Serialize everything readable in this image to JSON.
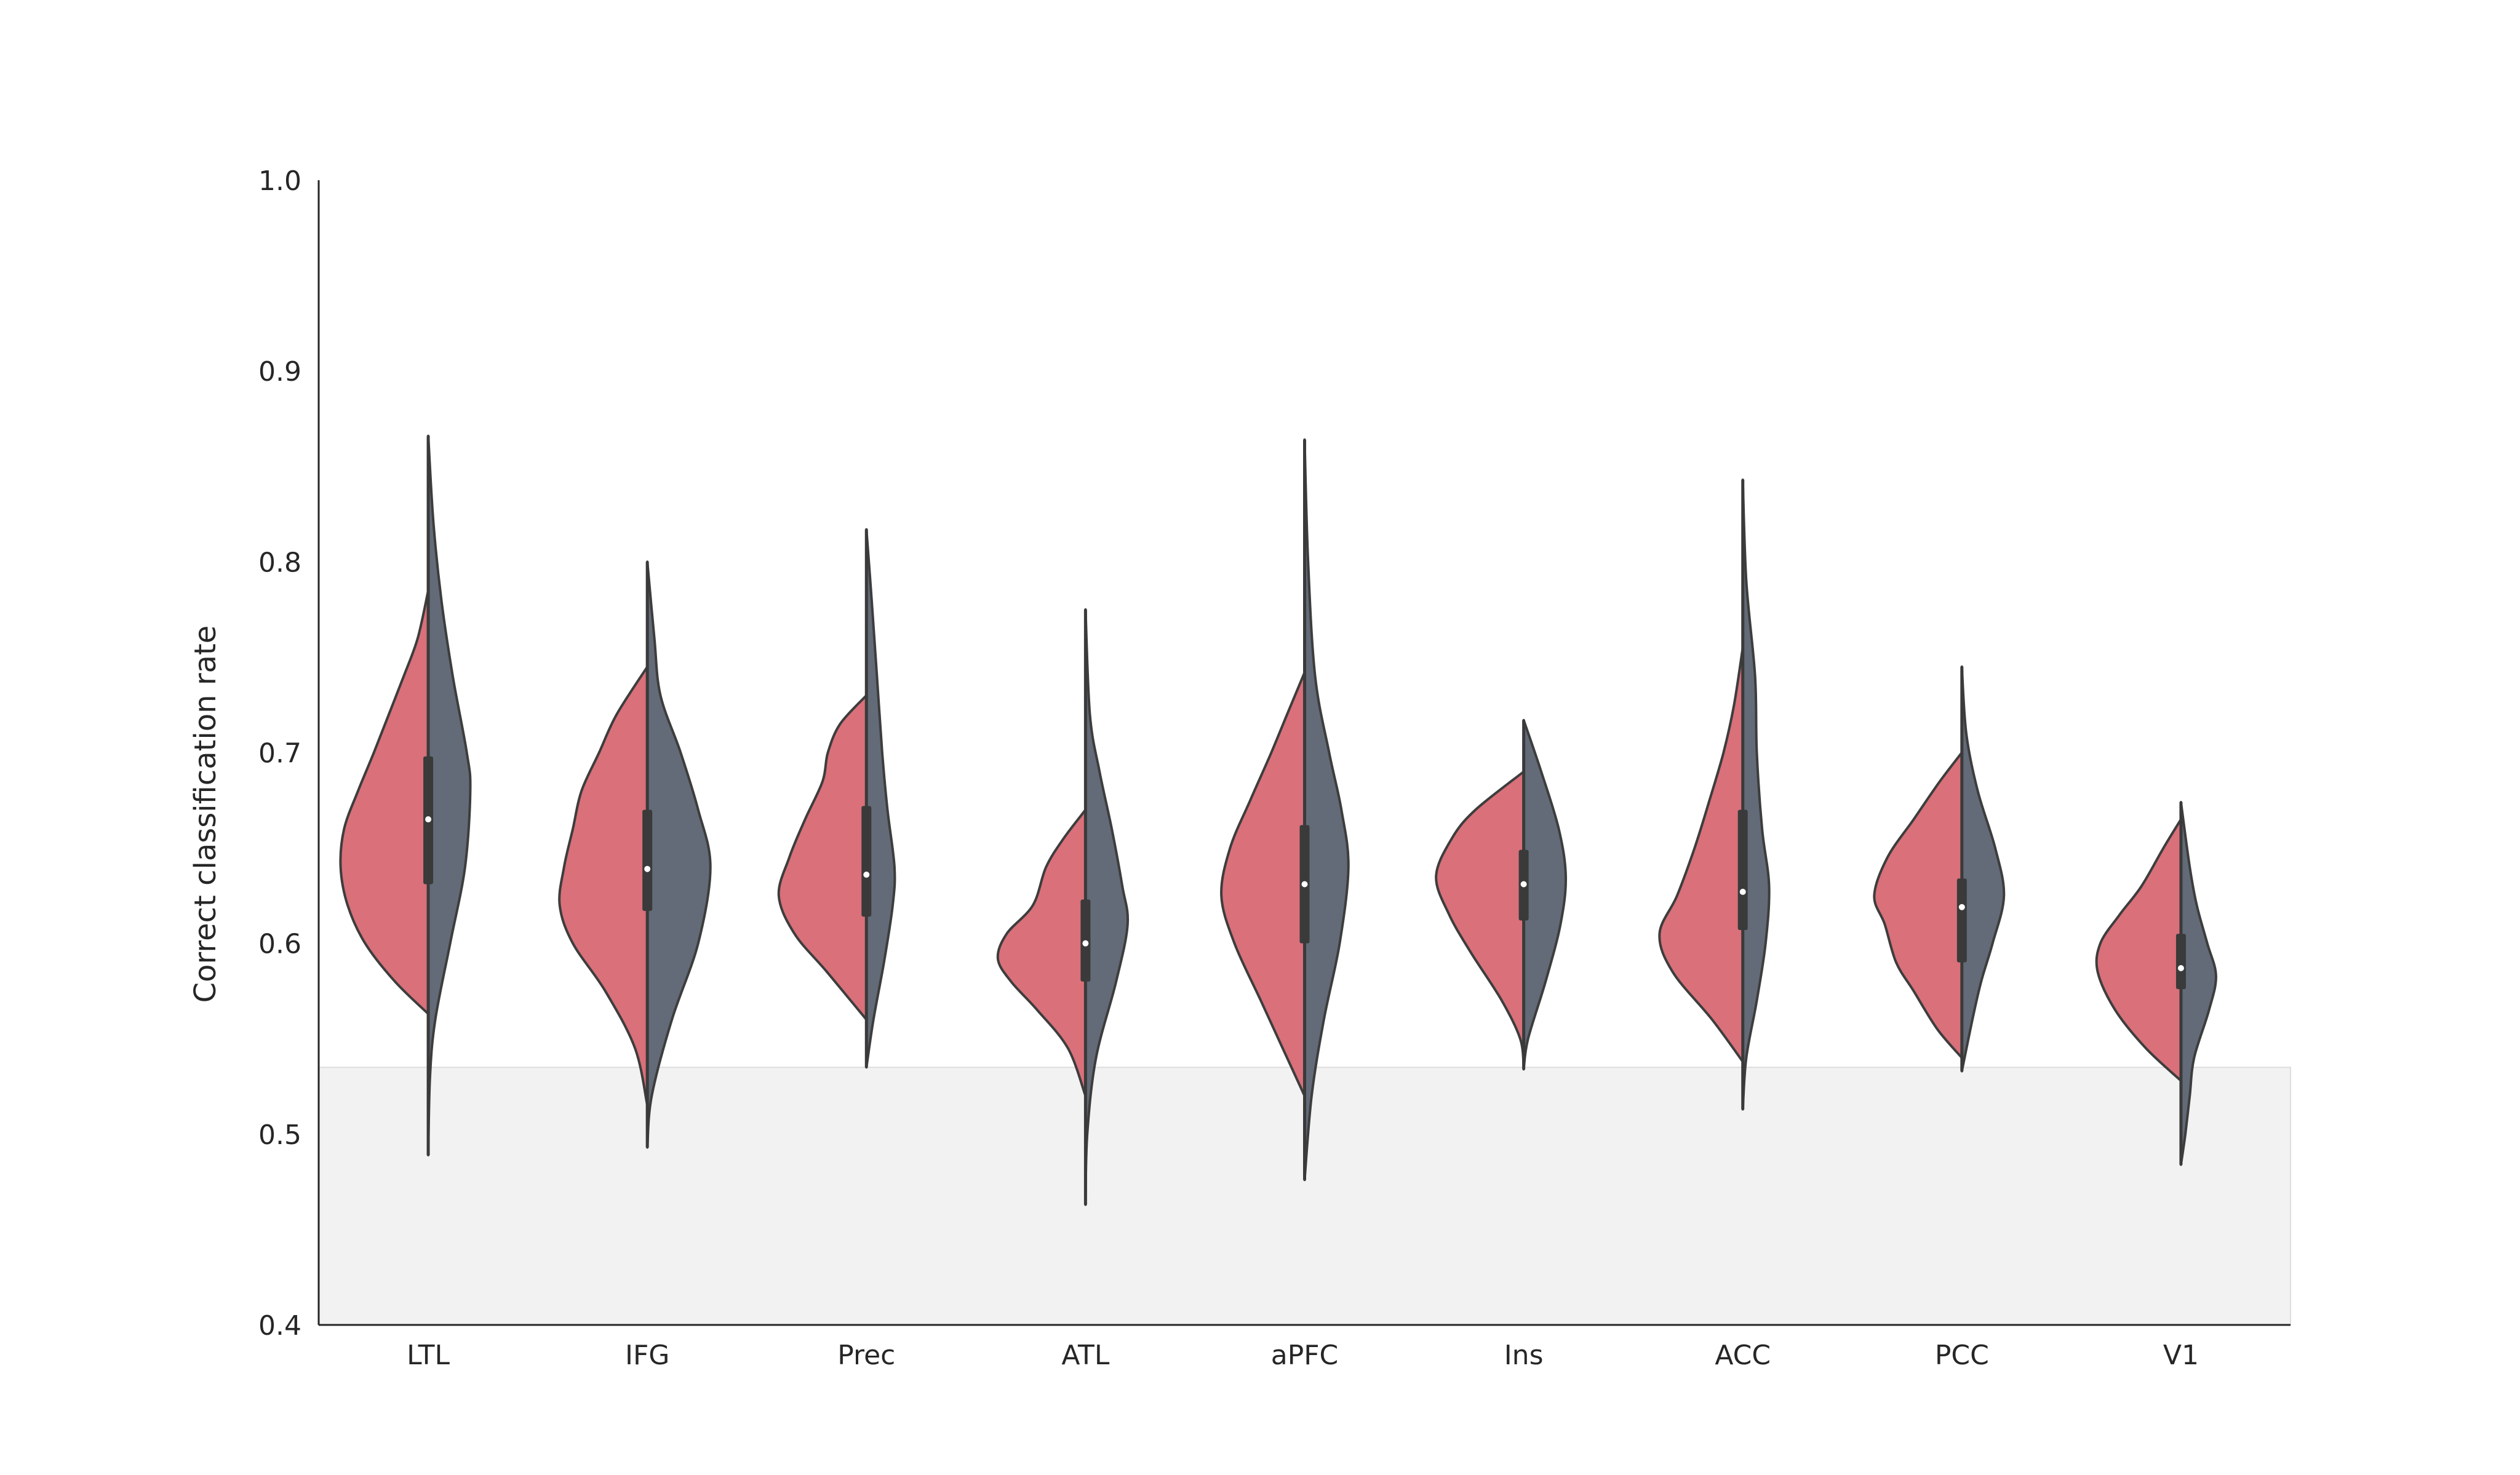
{
  "chart_data": {
    "type": "violin",
    "split": true,
    "title": "",
    "xlabel": "",
    "ylabel": "Correct classification rate",
    "ylim": [
      0.4,
      1.0
    ],
    "yticks": [
      "0.4",
      "0.5",
      "0.6",
      "0.7",
      "0.8",
      "0.9",
      "1.0"
    ],
    "categories": [
      "LTL",
      "IFG",
      "Prec",
      "ATL",
      "aPFC",
      "Ins",
      "ACC",
      "PCC",
      "V1"
    ],
    "chance_band": [
      0.4,
      0.535
    ],
    "colors": {
      "left_half": "#d9707a",
      "right_half": "#636b78",
      "outline": "#3d3d3d",
      "chance_band": "#f2f2f2",
      "box": "#3a3a3a",
      "median_dot": "#ffffff"
    },
    "violins": [
      {
        "category": "LTL",
        "left": {
          "min": 0.563,
          "max": 0.785,
          "profile": [
            [
              0.563,
              0.0
            ],
            [
              0.58,
              0.38
            ],
            [
              0.6,
              0.72
            ],
            [
              0.62,
              0.92
            ],
            [
              0.64,
              1.0
            ],
            [
              0.66,
              0.96
            ],
            [
              0.68,
              0.8
            ],
            [
              0.7,
              0.62
            ],
            [
              0.72,
              0.45
            ],
            [
              0.74,
              0.28
            ],
            [
              0.76,
              0.12
            ],
            [
              0.785,
              0.0
            ]
          ]
        },
        "right": {
          "min": 0.489,
          "max": 0.866,
          "profile": [
            [
              0.489,
              0.0
            ],
            [
              0.53,
              0.02
            ],
            [
              0.56,
              0.08
            ],
            [
              0.6,
              0.25
            ],
            [
              0.64,
              0.42
            ],
            [
              0.68,
              0.48
            ],
            [
              0.7,
              0.44
            ],
            [
              0.74,
              0.28
            ],
            [
              0.78,
              0.15
            ],
            [
              0.82,
              0.06
            ],
            [
              0.866,
              0.0
            ]
          ]
        },
        "q1": 0.631,
        "median": 0.665,
        "q3": 0.698
      },
      {
        "category": "IFG",
        "left": {
          "min": 0.515,
          "max": 0.745,
          "profile": [
            [
              0.515,
              0.0
            ],
            [
              0.545,
              0.14
            ],
            [
              0.575,
              0.48
            ],
            [
              0.6,
              0.85
            ],
            [
              0.62,
              1.0
            ],
            [
              0.64,
              0.95
            ],
            [
              0.66,
              0.85
            ],
            [
              0.68,
              0.75
            ],
            [
              0.7,
              0.55
            ],
            [
              0.72,
              0.35
            ],
            [
              0.745,
              0.0
            ]
          ]
        },
        "right": {
          "min": 0.493,
          "max": 0.8,
          "profile": [
            [
              0.493,
              0.0
            ],
            [
              0.52,
              0.05
            ],
            [
              0.56,
              0.28
            ],
            [
              0.6,
              0.58
            ],
            [
              0.64,
              0.72
            ],
            [
              0.67,
              0.58
            ],
            [
              0.7,
              0.38
            ],
            [
              0.73,
              0.15
            ],
            [
              0.76,
              0.08
            ],
            [
              0.8,
              0.0
            ]
          ]
        },
        "q1": 0.617,
        "median": 0.639,
        "q3": 0.67
      },
      {
        "category": "Prec",
        "left": {
          "min": 0.56,
          "max": 0.73,
          "profile": [
            [
              0.56,
              0.0
            ],
            [
              0.585,
              0.45
            ],
            [
              0.605,
              0.82
            ],
            [
              0.625,
              1.0
            ],
            [
              0.645,
              0.88
            ],
            [
              0.665,
              0.7
            ],
            [
              0.685,
              0.5
            ],
            [
              0.7,
              0.44
            ],
            [
              0.715,
              0.3
            ],
            [
              0.73,
              0.0
            ]
          ]
        },
        "right": {
          "min": 0.535,
          "max": 0.817,
          "profile": [
            [
              0.535,
              0.0
            ],
            [
              0.56,
              0.08
            ],
            [
              0.59,
              0.2
            ],
            [
              0.62,
              0.3
            ],
            [
              0.64,
              0.32
            ],
            [
              0.67,
              0.24
            ],
            [
              0.7,
              0.18
            ],
            [
              0.74,
              0.12
            ],
            [
              0.78,
              0.06
            ],
            [
              0.817,
              0.0
            ]
          ]
        },
        "q1": 0.614,
        "median": 0.636,
        "q3": 0.672
      },
      {
        "category": "ATL",
        "left": {
          "min": 0.52,
          "max": 0.67,
          "profile": [
            [
              0.52,
              0.0
            ],
            [
              0.545,
              0.2
            ],
            [
              0.565,
              0.55
            ],
            [
              0.58,
              0.85
            ],
            [
              0.592,
              1.0
            ],
            [
              0.605,
              0.9
            ],
            [
              0.62,
              0.6
            ],
            [
              0.64,
              0.45
            ],
            [
              0.655,
              0.25
            ],
            [
              0.67,
              0.0
            ]
          ]
        },
        "right": {
          "min": 0.463,
          "max": 0.775,
          "profile": [
            [
              0.463,
              0.0
            ],
            [
              0.5,
              0.02
            ],
            [
              0.54,
              0.12
            ],
            [
              0.58,
              0.35
            ],
            [
              0.61,
              0.48
            ],
            [
              0.63,
              0.42
            ],
            [
              0.66,
              0.3
            ],
            [
              0.69,
              0.16
            ],
            [
              0.72,
              0.05
            ],
            [
              0.775,
              0.0
            ]
          ]
        },
        "q1": 0.58,
        "median": 0.6,
        "q3": 0.623
      },
      {
        "category": "aPFC",
        "left": {
          "min": 0.52,
          "max": 0.742,
          "profile": [
            [
              0.52,
              0.0
            ],
            [
              0.545,
              0.25
            ],
            [
              0.57,
              0.5
            ],
            [
              0.6,
              0.8
            ],
            [
              0.625,
              0.95
            ],
            [
              0.65,
              0.85
            ],
            [
              0.675,
              0.62
            ],
            [
              0.7,
              0.38
            ],
            [
              0.72,
              0.2
            ],
            [
              0.742,
              0.0
            ]
          ]
        },
        "right": {
          "min": 0.476,
          "max": 0.864,
          "profile": [
            [
              0.476,
              0.0
            ],
            [
              0.52,
              0.08
            ],
            [
              0.56,
              0.22
            ],
            [
              0.6,
              0.4
            ],
            [
              0.64,
              0.5
            ],
            [
              0.67,
              0.42
            ],
            [
              0.7,
              0.28
            ],
            [
              0.74,
              0.12
            ],
            [
              0.8,
              0.04
            ],
            [
              0.864,
              0.0
            ]
          ]
        },
        "q1": 0.6,
        "median": 0.631,
        "q3": 0.662
      },
      {
        "category": "Ins",
        "left": {
          "min": 0.535,
          "max": 0.69,
          "profile": [
            [
              0.535,
              0.0
            ],
            [
              0.55,
              0.04
            ],
            [
              0.57,
              0.25
            ],
            [
              0.595,
              0.6
            ],
            [
              0.615,
              0.85
            ],
            [
              0.635,
              1.0
            ],
            [
              0.655,
              0.82
            ],
            [
              0.67,
              0.55
            ],
            [
              0.69,
              0.0
            ]
          ]
        },
        "right": {
          "min": 0.534,
          "max": 0.717,
          "profile": [
            [
              0.534,
              0.0
            ],
            [
              0.55,
              0.05
            ],
            [
              0.58,
              0.25
            ],
            [
              0.61,
              0.42
            ],
            [
              0.635,
              0.48
            ],
            [
              0.66,
              0.4
            ],
            [
              0.69,
              0.2
            ],
            [
              0.717,
              0.0
            ]
          ]
        },
        "q1": 0.612,
        "median": 0.631,
        "q3": 0.649
      },
      {
        "category": "ACC",
        "left": {
          "min": 0.538,
          "max": 0.755,
          "profile": [
            [
              0.538,
              0.0
            ],
            [
              0.56,
              0.35
            ],
            [
              0.585,
              0.8
            ],
            [
              0.605,
              0.95
            ],
            [
              0.625,
              0.75
            ],
            [
              0.65,
              0.55
            ],
            [
              0.675,
              0.38
            ],
            [
              0.7,
              0.22
            ],
            [
              0.725,
              0.1
            ],
            [
              0.755,
              0.0
            ]
          ]
        },
        "right": {
          "min": 0.513,
          "max": 0.843,
          "profile": [
            [
              0.513,
              0.0
            ],
            [
              0.54,
              0.04
            ],
            [
              0.57,
              0.16
            ],
            [
              0.6,
              0.26
            ],
            [
              0.63,
              0.3
            ],
            [
              0.66,
              0.22
            ],
            [
              0.7,
              0.16
            ],
            [
              0.74,
              0.14
            ],
            [
              0.79,
              0.04
            ],
            [
              0.843,
              0.0
            ]
          ]
        },
        "q1": 0.607,
        "median": 0.627,
        "q3": 0.67
      },
      {
        "category": "PCC",
        "left": {
          "min": 0.54,
          "max": 0.7,
          "profile": [
            [
              0.54,
              0.0
            ],
            [
              0.555,
              0.28
            ],
            [
              0.575,
              0.55
            ],
            [
              0.59,
              0.75
            ],
            [
              0.61,
              0.88
            ],
            [
              0.625,
              1.0
            ],
            [
              0.645,
              0.85
            ],
            [
              0.665,
              0.55
            ],
            [
              0.685,
              0.25
            ],
            [
              0.7,
              0.0
            ]
          ]
        },
        "right": {
          "min": 0.533,
          "max": 0.745,
          "profile": [
            [
              0.533,
              0.0
            ],
            [
              0.56,
              0.12
            ],
            [
              0.58,
              0.22
            ],
            [
              0.6,
              0.35
            ],
            [
              0.625,
              0.48
            ],
            [
              0.65,
              0.38
            ],
            [
              0.68,
              0.18
            ],
            [
              0.71,
              0.05
            ],
            [
              0.745,
              0.0
            ]
          ]
        },
        "q1": 0.59,
        "median": 0.619,
        "q3": 0.634
      },
      {
        "category": "V1",
        "left": {
          "min": 0.528,
          "max": 0.665,
          "profile": [
            [
              0.528,
              0.0
            ],
            [
              0.545,
              0.4
            ],
            [
              0.565,
              0.75
            ],
            [
              0.585,
              0.95
            ],
            [
              0.6,
              0.92
            ],
            [
              0.615,
              0.7
            ],
            [
              0.63,
              0.45
            ],
            [
              0.65,
              0.2
            ],
            [
              0.665,
              0.0
            ]
          ]
        },
        "right": {
          "min": 0.484,
          "max": 0.674,
          "profile": [
            [
              0.484,
              0.0
            ],
            [
              0.5,
              0.05
            ],
            [
              0.52,
              0.1
            ],
            [
              0.54,
              0.15
            ],
            [
              0.565,
              0.32
            ],
            [
              0.583,
              0.4
            ],
            [
              0.6,
              0.3
            ],
            [
              0.62,
              0.18
            ],
            [
              0.64,
              0.1
            ],
            [
              0.674,
              0.0
            ]
          ]
        },
        "q1": 0.576,
        "median": 0.587,
        "q3": 0.605
      }
    ]
  }
}
